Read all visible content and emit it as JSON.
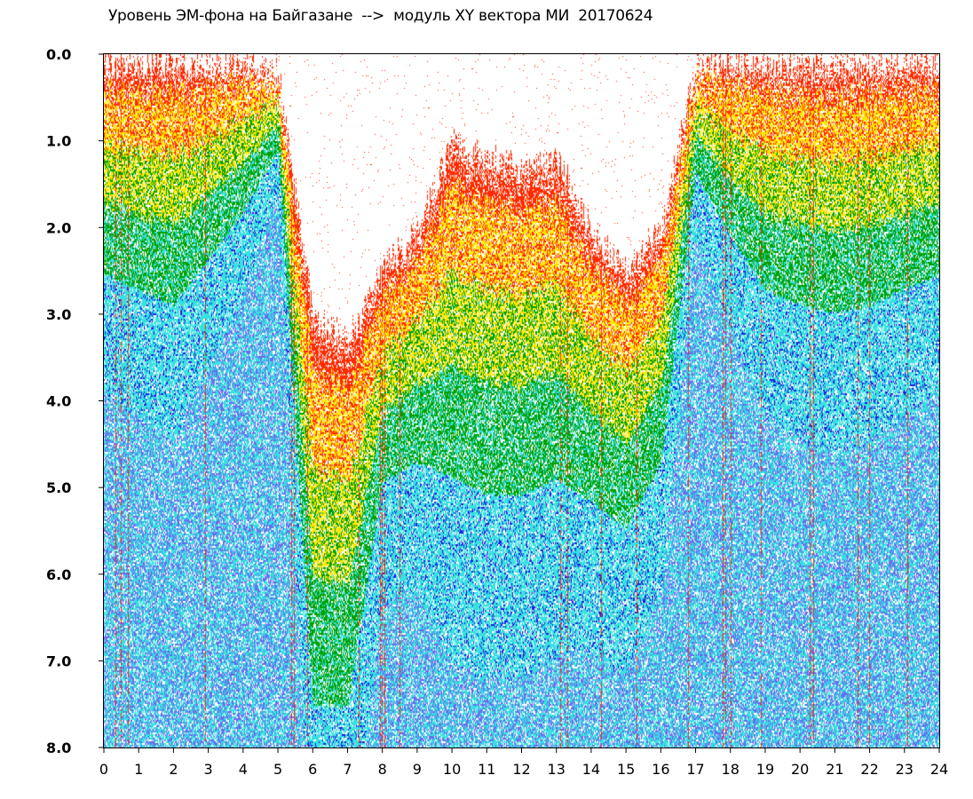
{
  "chart_data": {
    "type": "heatmap",
    "title": "Уровень ЭМ-фона на Байгазане  -->  модуль XY вектора МИ  20170624",
    "xlabel": "",
    "ylabel": "",
    "xlim": [
      0,
      24
    ],
    "ylim": [
      0.0,
      8.0
    ],
    "y_inverted": true,
    "grid": false,
    "legend": "none",
    "x_ticks": [
      "0",
      "1",
      "2",
      "3",
      "4",
      "5",
      "6",
      "7",
      "8",
      "9",
      "10",
      "11",
      "12",
      "13",
      "14",
      "15",
      "16",
      "17",
      "18",
      "19",
      "20",
      "21",
      "22",
      "23",
      "24"
    ],
    "y_ticks": [
      "0.0",
      "1.0",
      "2.0",
      "3.0",
      "4.0",
      "5.0",
      "6.0",
      "7.0",
      "8.0"
    ],
    "colormap_note": "",
    "colors": [
      "#ff2a00",
      "#ffe600",
      "#00a000",
      "#38e0e0",
      "#1e1ee0"
    ],
    "hours": [
      0,
      1,
      2,
      3,
      4,
      5,
      6,
      7,
      8,
      9,
      10,
      11,
      12,
      13,
      14,
      15,
      16,
      17,
      18,
      19,
      20,
      21,
      22,
      23,
      24
    ],
    "upper_envelope": [
      0.1,
      0.1,
      0.1,
      0.1,
      0.1,
      0.2,
      3.0,
      3.3,
      2.5,
      2.0,
      1.0,
      1.2,
      1.3,
      1.2,
      2.0,
      2.5,
      2.0,
      0.1,
      0.1,
      0.1,
      0.1,
      0.1,
      0.1,
      0.1,
      0.1
    ],
    "dense_level": [
      2.8,
      3.0,
      3.2,
      2.6,
      2.0,
      1.2,
      8.0,
      8.0,
      5.2,
      5.0,
      5.3,
      5.5,
      5.5,
      5.3,
      5.5,
      5.8,
      5.0,
      1.5,
      2.3,
      3.0,
      3.2,
      3.3,
      3.2,
      3.0,
      2.8
    ]
  }
}
